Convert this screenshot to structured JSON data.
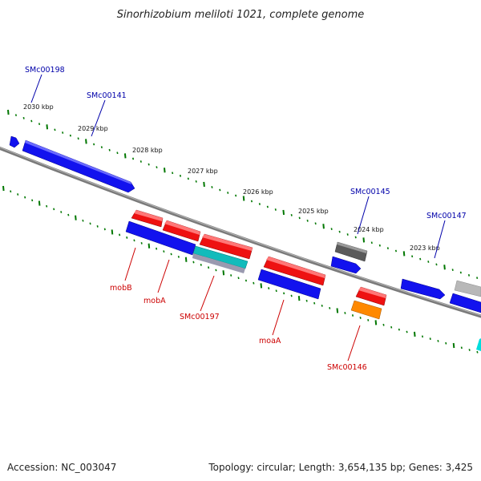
{
  "title": "Sinorhizobium meliloti 1021, complete genome",
  "footer": {
    "accession": "Accession: NC_003047",
    "topology": "Topology: circular; Length: 3,654,135 bp; Genes: 3,425"
  },
  "kbp_labels": [
    "2030 kbp",
    "2029 kbp",
    "2028 kbp",
    "2027 kbp",
    "2026 kbp",
    "2025 kbp",
    "2024 kbp",
    "2023 kbp"
  ],
  "top_gene_labels": [
    "SMc00198",
    "SMc00141",
    "SMc00145",
    "SMc00147"
  ],
  "bottom_gene_labels": [
    "mobB",
    "mobA",
    "SMc00197",
    "moaA",
    "SMc00146"
  ],
  "colors": {
    "forward_gene": "#0000ee",
    "reverse_gene": "#ee0000",
    "pseudo_gene": "#666666",
    "rna_gene": "#00bbbb",
    "other_gene": "#ff8800",
    "backbone": "#888888",
    "tick": "#007700"
  }
}
